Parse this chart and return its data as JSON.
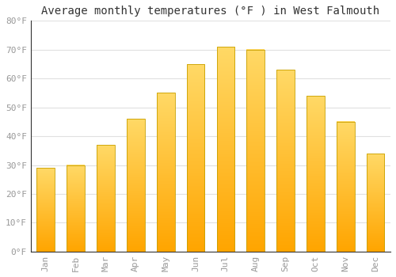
{
  "title": "Average monthly temperatures (°F ) in West Falmouth",
  "months": [
    "Jan",
    "Feb",
    "Mar",
    "Apr",
    "May",
    "Jun",
    "Jul",
    "Aug",
    "Sep",
    "Oct",
    "Nov",
    "Dec"
  ],
  "values": [
    29,
    30,
    37,
    46,
    55,
    65,
    71,
    70,
    63,
    54,
    45,
    34
  ],
  "bar_color_top": "#FFD966",
  "bar_color_bottom": "#FFA500",
  "bar_edge_color": "#C8A000",
  "background_color": "#FFFFFF",
  "grid_color": "#E0E0E0",
  "ylim": [
    0,
    80
  ],
  "yticks": [
    0,
    10,
    20,
    30,
    40,
    50,
    60,
    70,
    80
  ],
  "ytick_labels": [
    "0°F",
    "10°F",
    "20°F",
    "30°F",
    "40°F",
    "50°F",
    "60°F",
    "70°F",
    "80°F"
  ],
  "tick_color": "#999999",
  "spine_color": "#333333",
  "title_fontsize": 10,
  "tick_fontsize": 8,
  "font_family": "monospace",
  "bar_width": 0.6
}
